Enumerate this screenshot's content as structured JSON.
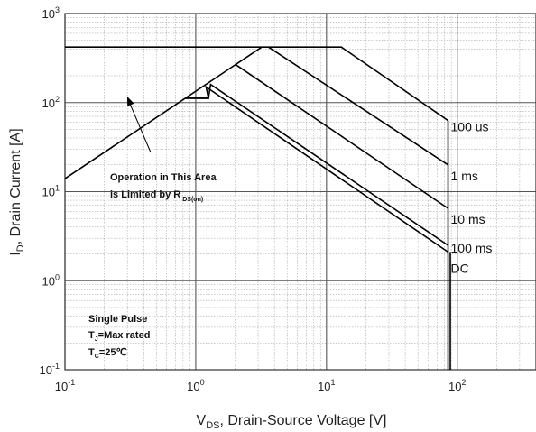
{
  "chart_data": {
    "type": "line",
    "xlabel": {
      "main": "V",
      "sub": "DS",
      "rest": ", Drain-Source Voltage [V]"
    },
    "ylabel": {
      "main": "I",
      "sub": "D",
      "rest": ", Drain Current [A]"
    },
    "x_scale": "log",
    "y_scale": "log",
    "xlim": [
      0.1,
      400
    ],
    "ylim": [
      0.1,
      1000
    ],
    "x_ticks": [
      {
        "base": "10",
        "exp": "-1",
        "value": 0.1
      },
      {
        "base": "10",
        "exp": "0",
        "value": 1
      },
      {
        "base": "10",
        "exp": "1",
        "value": 10
      },
      {
        "base": "10",
        "exp": "2",
        "value": 100
      }
    ],
    "y_ticks": [
      {
        "base": "10",
        "exp": "-1",
        "value": 0.1
      },
      {
        "base": "10",
        "exp": "0",
        "value": 1
      },
      {
        "base": "10",
        "exp": "1",
        "value": 10
      },
      {
        "base": "10",
        "exp": "2",
        "value": 100
      },
      {
        "base": "10",
        "exp": "3",
        "value": 1000
      }
    ],
    "grid": true,
    "line_color": "#000000",
    "grid_major_color": "#555555",
    "grid_minor_color": "#9a9a9a",
    "rds_limit": [
      [
        0.1,
        14
      ],
      [
        3.2,
        420
      ]
    ],
    "current_limit": [
      [
        0.1,
        420
      ],
      [
        3.2,
        420
      ]
    ],
    "series": [
      {
        "label": "100 us",
        "points": [
          [
            3.2,
            420
          ],
          [
            13,
            420
          ],
          [
            85,
            63
          ]
        ]
      },
      {
        "label": "1 ms",
        "points": [
          [
            3.6,
            420
          ],
          [
            85,
            20
          ]
        ]
      },
      {
        "label": "10 ms",
        "points": [
          [
            2,
            270
          ],
          [
            85,
            6.5
          ]
        ]
      },
      {
        "label": "100 ms",
        "points": [
          [
            0.83,
            112
          ],
          [
            1.25,
            112
          ],
          [
            1.3,
            160
          ],
          [
            85,
            2.5
          ]
        ]
      },
      {
        "label": "DC",
        "points": [
          [
            0.83,
            112
          ],
          [
            1.25,
            112
          ],
          [
            1.2,
            150
          ],
          [
            85,
            2.1
          ]
        ]
      }
    ],
    "breakdown_voltage": 85,
    "annotations": {
      "operation_line1": "Operation in This Area",
      "operation_line2": "is Limited by R",
      "operation_sub": "DS(on)",
      "pulse_title": "Single Pulse",
      "tj_main": "T",
      "tj_sub": "J",
      "tj_rest": "=Max rated",
      "tc_main": "T",
      "tc_sub": "C",
      "tc_rest": "=25℃"
    }
  }
}
